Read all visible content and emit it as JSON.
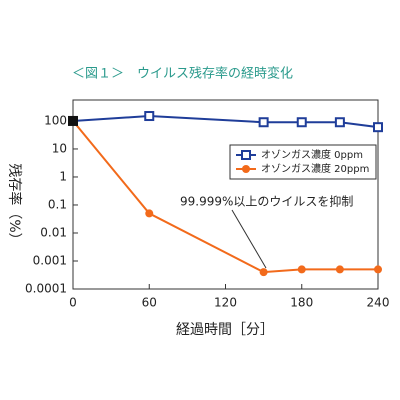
{
  "chart_data": {
    "type": "line",
    "title": "＜図１＞　ウイルス残存率の経時変化",
    "ylabel": "残存率（%）",
    "xlabel": "経過時間［分］",
    "x": [
      0,
      60,
      150,
      180,
      210,
      240
    ],
    "series": [
      {
        "name": "オゾンガス濃度 0ppm",
        "color": "#1f3d99",
        "marker": "square",
        "values": [
          100,
          150,
          90,
          90,
          90,
          60
        ]
      },
      {
        "name": "オゾンガス濃度 20ppm",
        "color": "#f26a1b",
        "marker": "circle",
        "values": [
          100,
          0.05,
          0.0004,
          0.0005,
          0.0005,
          0.0005
        ]
      }
    ],
    "annotation": "99.999%以上のウイルスを抑制",
    "xlim": [
      0,
      240
    ],
    "xticks": [
      0,
      60,
      120,
      180,
      240
    ],
    "ylim": [
      0.0001,
      560
    ],
    "yticks": [
      0.0001,
      0.001,
      0.01,
      0.1,
      1,
      10,
      100
    ],
    "log_y": true,
    "legend": "upper right"
  }
}
